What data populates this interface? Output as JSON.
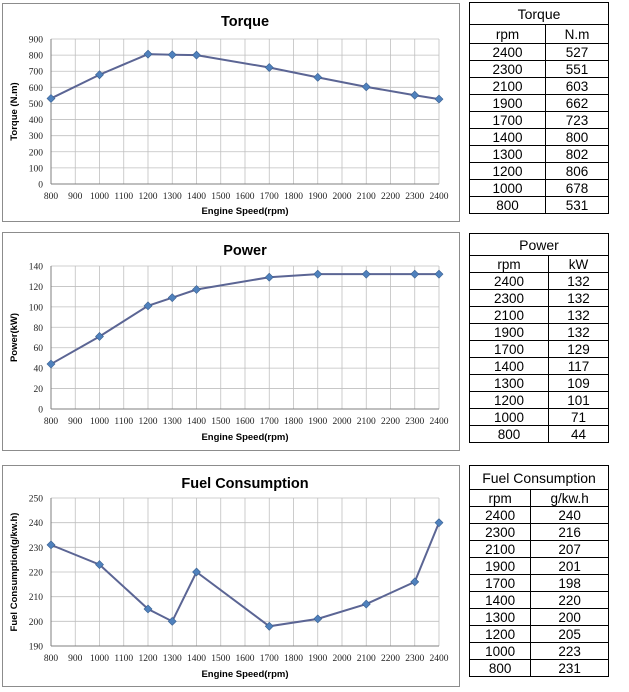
{
  "colors": {
    "line": "#5b6594",
    "marker": "#4f81bd",
    "grid": "#bfbfbf"
  },
  "chart_data": [
    {
      "type": "line",
      "title": "Torque",
      "xlabel": "Engine Speed(rpm)",
      "ylabel": "Torque (N.m)",
      "xlim": [
        800,
        2400
      ],
      "ylim": [
        0,
        900
      ],
      "ytick_step": 100,
      "xticks": [
        "800",
        "900",
        "1000",
        "1100",
        "1200",
        "1300",
        "1400",
        "1500",
        "1600",
        "1700",
        "1800",
        "1900",
        "2000",
        "2100",
        "2200",
        "2300",
        "2400"
      ],
      "x": [
        800,
        1000,
        1200,
        1300,
        1400,
        1700,
        1900,
        2100,
        2300,
        2400
      ],
      "y": [
        531,
        678,
        806,
        802,
        800,
        723,
        662,
        603,
        551,
        527
      ]
    },
    {
      "type": "line",
      "title": "Power",
      "xlabel": "Engine Speed(rpm)",
      "ylabel": "Power(kW)",
      "xlim": [
        800,
        2400
      ],
      "ylim": [
        0,
        140
      ],
      "ytick_step": 20,
      "xticks": [
        "800",
        "900",
        "1000",
        "1100",
        "1200",
        "1300",
        "1400",
        "1500",
        "1600",
        "1700",
        "1800",
        "1900",
        "2000",
        "2100",
        "2200",
        "2300",
        "2400"
      ],
      "x": [
        800,
        1000,
        1200,
        1300,
        1400,
        1700,
        1900,
        2100,
        2300,
        2400
      ],
      "y": [
        44,
        71,
        101,
        109,
        117,
        129,
        132,
        132,
        132,
        132
      ]
    },
    {
      "type": "line",
      "title": "Fuel Consumption",
      "xlabel": "Engine Speed(rpm)",
      "ylabel": "Fuel Consumption(g/kw.h)",
      "xlim": [
        800,
        2400
      ],
      "ylim": [
        190,
        250
      ],
      "ytick_step": 10,
      "xticks": [
        "800",
        "900",
        "1000",
        "1100",
        "1200",
        "1300",
        "1400",
        "1500",
        "1600",
        "1700",
        "1800",
        "1900",
        "2000",
        "2100",
        "2200",
        "2300",
        "2400"
      ],
      "x": [
        800,
        1000,
        1200,
        1300,
        1400,
        1700,
        1900,
        2100,
        2300,
        2400
      ],
      "y": [
        231,
        223,
        205,
        200,
        220,
        198,
        201,
        207,
        216,
        240
      ]
    }
  ],
  "tables": [
    {
      "caption": "Torque",
      "headers": [
        "rpm",
        "N.m"
      ],
      "rows": [
        [
          "2400",
          "527"
        ],
        [
          "2300",
          "551"
        ],
        [
          "2100",
          "603"
        ],
        [
          "1900",
          "662"
        ],
        [
          "1700",
          "723"
        ],
        [
          "1400",
          "800"
        ],
        [
          "1300",
          "802"
        ],
        [
          "1200",
          "806"
        ],
        [
          "1000",
          "678"
        ],
        [
          "800",
          "531"
        ]
      ]
    },
    {
      "caption": "Power",
      "headers": [
        "rpm",
        "kW"
      ],
      "rows": [
        [
          "2400",
          "132"
        ],
        [
          "2300",
          "132"
        ],
        [
          "2100",
          "132"
        ],
        [
          "1900",
          "132"
        ],
        [
          "1700",
          "129"
        ],
        [
          "1400",
          "117"
        ],
        [
          "1300",
          "109"
        ],
        [
          "1200",
          "101"
        ],
        [
          "1000",
          "71"
        ],
        [
          "800",
          "44"
        ]
      ]
    },
    {
      "caption": "Fuel Consumption",
      "headers": [
        "rpm",
        "g/kw.h"
      ],
      "rows": [
        [
          "2400",
          "240"
        ],
        [
          "2300",
          "216"
        ],
        [
          "2100",
          "207"
        ],
        [
          "1900",
          "201"
        ],
        [
          "1700",
          "198"
        ],
        [
          "1400",
          "220"
        ],
        [
          "1300",
          "200"
        ],
        [
          "1200",
          "205"
        ],
        [
          "1000",
          "223"
        ],
        [
          "800",
          "231"
        ]
      ]
    }
  ]
}
